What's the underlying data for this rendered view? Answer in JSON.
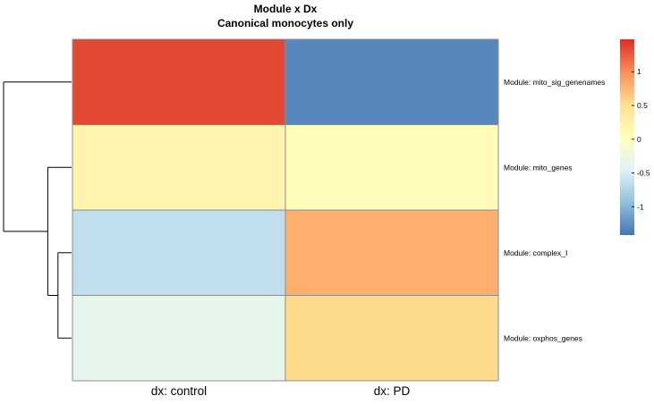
{
  "chart_data": {
    "type": "heatmap",
    "title": "Module x Dx",
    "subtitle": "Canonical monocytes only",
    "rows": [
      "Module:  mito_sig_genenames",
      "Module:  mito_genes",
      "Module:  complex_I",
      "Module:  oxphos_genes"
    ],
    "columns": [
      "dx:  control",
      "dx:  PD"
    ],
    "values": [
      [
        1.35,
        -1.3
      ],
      [
        0.2,
        0.1
      ],
      [
        -0.65,
        0.8
      ],
      [
        -0.35,
        0.55
      ]
    ],
    "colorbar": {
      "min": -1.42,
      "max": 1.48,
      "ticks": [
        1,
        0.5,
        0,
        -0.5,
        -1
      ],
      "tick_labels": [
        "1",
        "0.5",
        "0",
        "-0.5",
        "-1"
      ],
      "colors": [
        "#4575B4",
        "#91BFDB",
        "#E0F3F8",
        "#FFFFBF",
        "#FEE090",
        "#FC8D59",
        "#D73027"
      ]
    },
    "row_dendrogram": {
      "merges": [
        {
          "left": "complex_I",
          "right": "oxphos_genes",
          "height": 0.2
        },
        {
          "left": "mito_genes",
          "right": "(complex_I, oxphos_genes)",
          "height": 0.35
        },
        {
          "left": "mito_sig_genenames",
          "right": "(mito_genes, complex_I, oxphos_genes)",
          "height": 1.0
        }
      ]
    },
    "cell_border_color": "#8C8C8C"
  }
}
